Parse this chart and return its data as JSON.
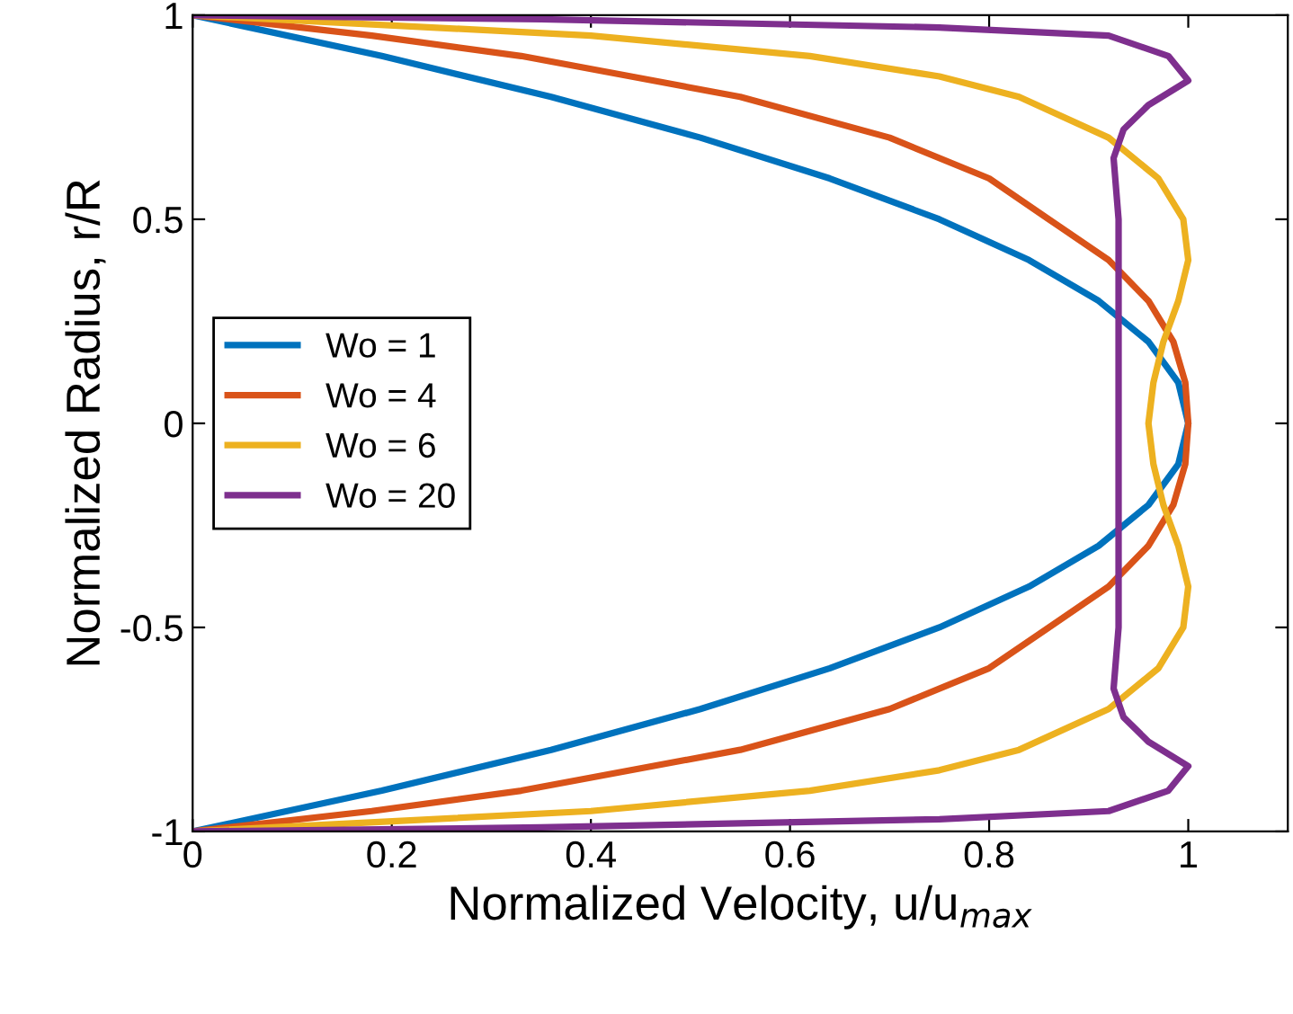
{
  "chart_data": {
    "type": "line",
    "xlabel": "Normalized Velocity, u/u$_{max}$",
    "ylabel": "Normalized Radius, r/R",
    "xlim": [
      0,
      1.1
    ],
    "ylim": [
      -1,
      1
    ],
    "xticks": [
      0,
      0.2,
      0.4,
      0.6,
      0.8,
      1
    ],
    "yticks": [
      -1,
      -0.5,
      0,
      0.5,
      1
    ],
    "grid": false,
    "legend": "left",
    "marker": "none",
    "line_style": "solid",
    "series": [
      {
        "name": "Wo = 1",
        "color": "#0072bd",
        "x": [
          0,
          0.19,
          0.36,
          0.51,
          0.64,
          0.75,
          0.84,
          0.91,
          0.96,
          0.99,
          1,
          0.99,
          0.96,
          0.91,
          0.84,
          0.75,
          0.64,
          0.51,
          0.36,
          0.19,
          0
        ],
        "values": [
          -1,
          -0.9,
          -0.8,
          -0.7,
          -0.6,
          -0.5,
          -0.4,
          -0.3,
          -0.2,
          -0.1,
          0,
          0.1,
          0.2,
          0.3,
          0.4,
          0.5,
          0.6,
          0.7,
          0.8,
          0.9,
          1
        ]
      },
      {
        "name": "Wo = 4",
        "color": "#d95319",
        "x": [
          0,
          0.18,
          0.33,
          0.55,
          0.7,
          0.8,
          0.86,
          0.92,
          0.96,
          0.985,
          0.997,
          1,
          0.997,
          0.985,
          0.96,
          0.92,
          0.86,
          0.8,
          0.7,
          0.55,
          0.33,
          0.18,
          0
        ],
        "values": [
          -1,
          -0.95,
          -0.9,
          -0.8,
          -0.7,
          -0.6,
          -0.5,
          -0.4,
          -0.3,
          -0.2,
          -0.1,
          0,
          0.1,
          0.2,
          0.3,
          0.4,
          0.5,
          0.6,
          0.7,
          0.8,
          0.9,
          0.95,
          1
        ]
      },
      {
        "name": "Wo = 6",
        "color": "#edb120",
        "x": [
          0,
          0.4,
          0.62,
          0.75,
          0.83,
          0.92,
          0.97,
          0.995,
          1,
          0.99,
          0.975,
          0.965,
          0.96,
          0.965,
          0.975,
          0.99,
          1,
          0.995,
          0.97,
          0.92,
          0.83,
          0.75,
          0.62,
          0.4,
          0
        ],
        "values": [
          -1,
          -0.95,
          -0.9,
          -0.85,
          -0.8,
          -0.7,
          -0.6,
          -0.5,
          -0.4,
          -0.3,
          -0.2,
          -0.1,
          0,
          0.1,
          0.2,
          0.3,
          0.4,
          0.5,
          0.6,
          0.7,
          0.8,
          0.85,
          0.9,
          0.95,
          1
        ]
      },
      {
        "name": "Wo = 20",
        "color": "#7e2f8e",
        "x": [
          0,
          0.35,
          0.75,
          0.92,
          0.98,
          1,
          0.96,
          0.935,
          0.925,
          0.93,
          0.93,
          0.93,
          0.925,
          0.935,
          0.96,
          1,
          0.98,
          0.92,
          0.75,
          0.35,
          0
        ],
        "values": [
          -1,
          -0.99,
          -0.97,
          -0.95,
          -0.9,
          -0.84,
          -0.78,
          -0.72,
          -0.65,
          -0.5,
          0,
          0.5,
          0.65,
          0.72,
          0.78,
          0.84,
          0.9,
          0.95,
          0.97,
          0.99,
          1
        ]
      }
    ]
  }
}
